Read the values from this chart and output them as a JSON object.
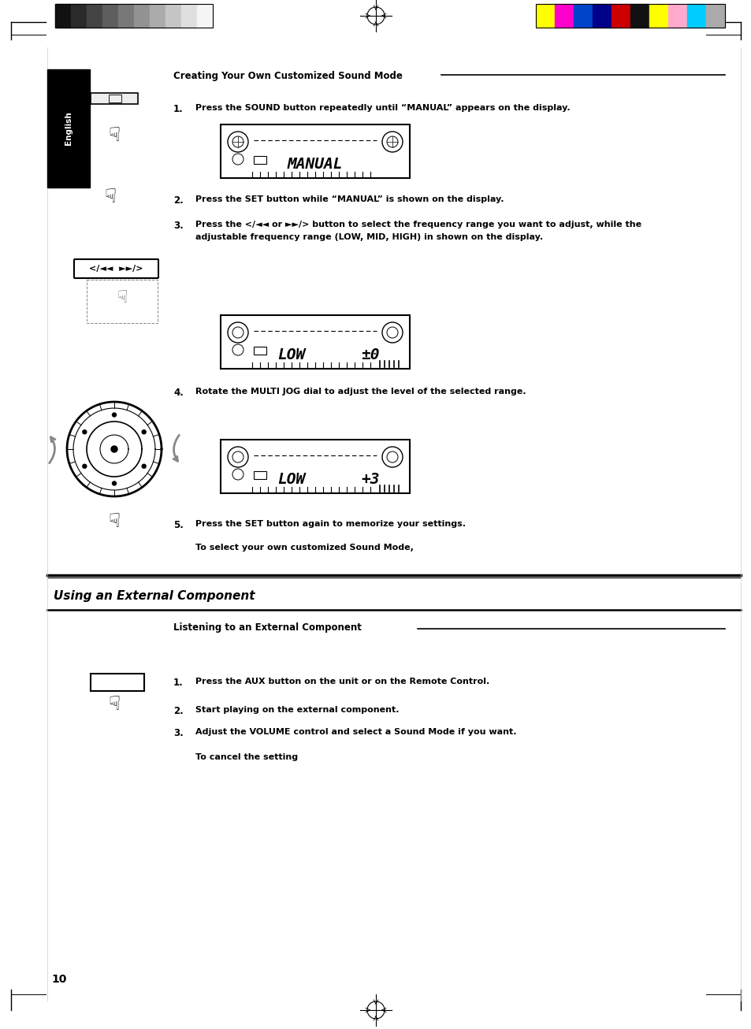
{
  "page_bg": "#ffffff",
  "page_width": 9.54,
  "page_height": 13.06,
  "dpi": 100,
  "header_gs_colors": [
    "#111111",
    "#2a2a2a",
    "#444444",
    "#5e5e5e",
    "#787878",
    "#929292",
    "#ababab",
    "#c5c5c5",
    "#dfdfdf",
    "#f5f5f5"
  ],
  "header_cc_colors": [
    "#ffff00",
    "#ff00cc",
    "#0044cc",
    "#000088",
    "#cc0000",
    "#111111",
    "#ffff00",
    "#ffaacc",
    "#00ccff",
    "#aaaaaa"
  ],
  "section1_title": "Creating Your Own Customized Sound Mode",
  "section2_title": "Using an External Component",
  "sub_section_title": "Listening to an External Component",
  "step1_text": "Press the SOUND button repeatedly until “MANUAL” appears on the display.",
  "step2_text": "Press the SET button while “MANUAL” is shown on the display.",
  "step3_line1": "Press the </◄◄ or ►►/> button to select the frequency range you want to adjust, while the",
  "step3_line2": "adjustable frequency range (LOW, MID, HIGH) in shown on the display.",
  "step4_text": "Rotate the MULTI JOG dial to adjust the level of the selected range.",
  "step5_text": "Press the SET button again to memorize your settings.",
  "to_select_text": "To select your own customized Sound Mode,",
  "sec2_step1_text": "Press the AUX button on the unit or on the Remote Control.",
  "sec2_step2_text": "Start playing on the external component.",
  "sec2_step3_text": "Adjust the VOLUME control and select a Sound Mode if you want.",
  "to_cancel_text": "To cancel the setting",
  "page_num": "10"
}
